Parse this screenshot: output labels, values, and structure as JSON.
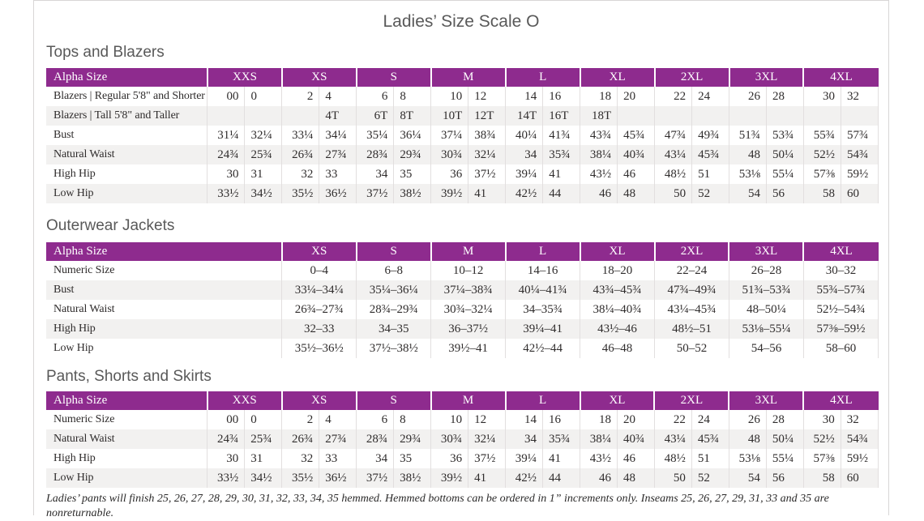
{
  "title": "Ladies’ Size Scale O",
  "footnote": "Ladies’ pants will finish 25, 26, 27, 28, 29, 30, 31, 32, 33, 34, 35 hemmed. Hemmed bottoms can be ordered in 1” increments only. Inseams 25, 26, 27, 29, 31, 33 and 35 are nonreturnable.",
  "colors": {
    "accent": "#8e2b8e",
    "row_alt": "#f2f1f0",
    "grid": "#e2dfdf",
    "heading_text": "#595959",
    "body_text": "#2f2c2c",
    "frame_border": "#d8d6d6"
  },
  "tables": [
    {
      "heading": "Tops and Blazers",
      "type": "paired",
      "label_width": 199,
      "value_width": 46,
      "header": [
        "Alpha Size",
        "XXS",
        "XS",
        "S",
        "M",
        "L",
        "XL",
        "2XL",
        "3XL",
        "4XL"
      ],
      "rows": [
        {
          "label": "Blazers  |  Regular 5'8\" and Shorter",
          "values": [
            "00",
            "0",
            "2",
            "4",
            "6",
            "8",
            "10",
            "12",
            "14",
            "16",
            "18",
            "20",
            "22",
            "24",
            "26",
            "28",
            "30",
            "32"
          ]
        },
        {
          "label": "Blazers  |  Tall 5'8\" and Taller",
          "values": [
            "",
            "",
            "",
            "4T",
            "6T",
            "8T",
            "10T",
            "12T",
            "14T",
            "16T",
            "18T",
            "",
            "",
            "",
            "",
            "",
            "",
            ""
          ]
        },
        {
          "label": "Bust",
          "values": [
            "31¼",
            "32¼",
            "33¼",
            "34¼",
            "35¼",
            "36¼",
            "37¼",
            "38¾",
            "40¼",
            "41¾",
            "43¾",
            "45¾",
            "47¾",
            "49¾",
            "51¾",
            "53¾",
            "55¾",
            "57¾"
          ]
        },
        {
          "label": "Natural Waist",
          "values": [
            "24¾",
            "25¾",
            "26¾",
            "27¾",
            "28¾",
            "29¾",
            "30¾",
            "32¼",
            "34",
            "35¾",
            "38¼",
            "40¾",
            "43¼",
            "45¾",
            "48",
            "50¼",
            "52½",
            "54¾"
          ]
        },
        {
          "label": "High Hip",
          "values": [
            "30",
            "31",
            "32",
            "33",
            "34",
            "35",
            "36",
            "37½",
            "39¼",
            "41",
            "43½",
            "46",
            "48½",
            "51",
            "53⅛",
            "55¼",
            "57⅜",
            "59½"
          ]
        },
        {
          "label": "Low Hip",
          "values": [
            "33½",
            "34½",
            "35½",
            "36½",
            "37½",
            "38½",
            "39½",
            "41",
            "42½",
            "44",
            "46",
            "48",
            "50",
            "52",
            "54",
            "56",
            "58",
            "60"
          ]
        }
      ]
    },
    {
      "heading": "Outerwear Jackets",
      "type": "single",
      "label_width": 291,
      "value_width": 92,
      "header": [
        "Alpha Size",
        "XS",
        "S",
        "M",
        "L",
        "XL",
        "2XL",
        "3XL",
        "4XL"
      ],
      "rows": [
        {
          "label": "Numeric Size",
          "values": [
            "0–4",
            "6–8",
            "10–12",
            "14–16",
            "18–20",
            "22–24",
            "26–28",
            "30–32"
          ]
        },
        {
          "label": "Bust",
          "values": [
            "33¼–34¼",
            "35¼–36¼",
            "37¼–38¾",
            "40¼–41¾",
            "43¾–45¾",
            "47¾–49¾",
            "51¾–53¾",
            "55¾–57¾"
          ]
        },
        {
          "label": "Natural Waist",
          "values": [
            "26¾–27¾",
            "28¾–29¾",
            "30¾–32¼",
            "34–35¾",
            "38¼–40¾",
            "43¼–45¾",
            "48–50¼",
            "52½–54¾"
          ]
        },
        {
          "label": "High Hip",
          "values": [
            "32–33",
            "34–35",
            "36–37½",
            "39¼–41",
            "43½–46",
            "48½–51",
            "53⅛–55¼",
            "57⅜–59½"
          ]
        },
        {
          "label": "Low Hip",
          "values": [
            "35½–36½",
            "37½–38½",
            "39½–41",
            "42½–44",
            "46–48",
            "50–52",
            "54–56",
            "58–60"
          ]
        }
      ]
    },
    {
      "heading": "Pants, Shorts and Skirts",
      "type": "paired",
      "label_width": 199,
      "value_width": 46,
      "header": [
        "Alpha Size",
        "XXS",
        "XS",
        "S",
        "M",
        "L",
        "XL",
        "2XL",
        "3XL",
        "4XL"
      ],
      "rows": [
        {
          "label": "Numeric Size",
          "values": [
            "00",
            "0",
            "2",
            "4",
            "6",
            "8",
            "10",
            "12",
            "14",
            "16",
            "18",
            "20",
            "22",
            "24",
            "26",
            "28",
            "30",
            "32"
          ]
        },
        {
          "label": "Natural Waist",
          "values": [
            "24¾",
            "25¾",
            "26¾",
            "27¾",
            "28¾",
            "29¾",
            "30¾",
            "32¼",
            "34",
            "35¾",
            "38¼",
            "40¾",
            "43¼",
            "45¾",
            "48",
            "50¼",
            "52½",
            "54¾"
          ]
        },
        {
          "label": "High Hip",
          "values": [
            "30",
            "31",
            "32",
            "33",
            "34",
            "35",
            "36",
            "37½",
            "39¼",
            "41",
            "43½",
            "46",
            "48½",
            "51",
            "53⅛",
            "55¼",
            "57⅜",
            "59½"
          ]
        },
        {
          "label": "Low Hip",
          "values": [
            "33½",
            "34½",
            "35½",
            "36½",
            "37½",
            "38½",
            "39½",
            "41",
            "42½",
            "44",
            "46",
            "48",
            "50",
            "52",
            "54",
            "56",
            "58",
            "60"
          ]
        }
      ]
    }
  ]
}
